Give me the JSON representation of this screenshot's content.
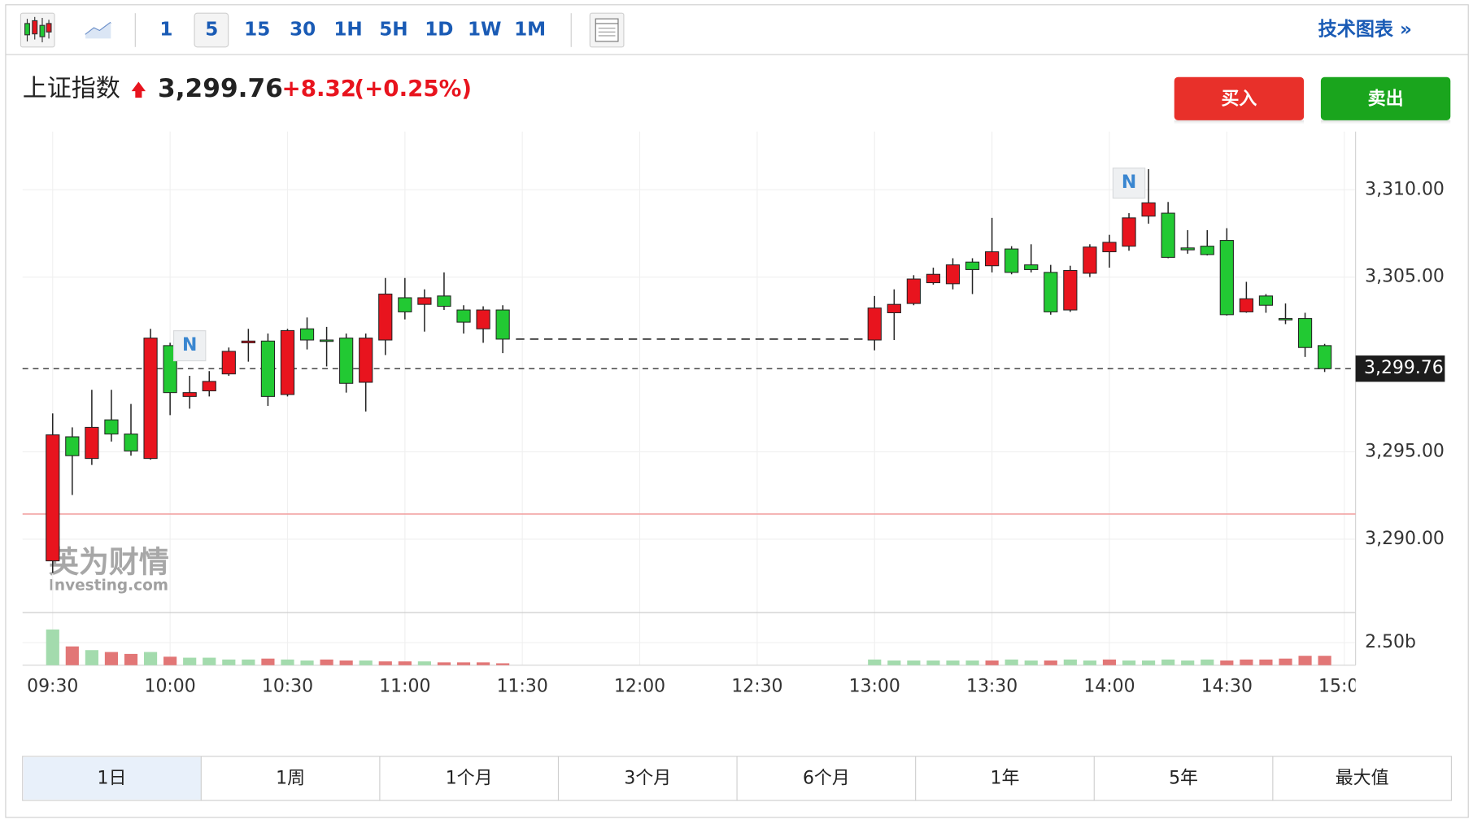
{
  "toolbar": {
    "intervals": [
      "1",
      "5",
      "15",
      "30",
      "1H",
      "5H",
      "1D",
      "1W",
      "1M"
    ],
    "tech_chart": "技术图表 »"
  },
  "header": {
    "name": "上证指数",
    "change": "+8.32",
    "change_pct": "(+0.25%)"
  },
  "buttons": {
    "buy": "买入",
    "sell": "卖出"
  },
  "ranges": [
    "1日",
    "1周",
    "1个月",
    "3个月",
    "6个月",
    "1年",
    "5年",
    "最大值"
  ],
  "watermark": {
    "cn": "英为财情",
    "en": "Investing.com"
  },
  "chart_data": {
    "type": "candlestick",
    "x": [
      570,
      575,
      580,
      585,
      590,
      595,
      600,
      605,
      610,
      615,
      620,
      625,
      630,
      635,
      640,
      645,
      650,
      655,
      660,
      665,
      670,
      675,
      680,
      685,
      780,
      785,
      790,
      795,
      800,
      805,
      810,
      815,
      820,
      825,
      830,
      835,
      840,
      845,
      850,
      855,
      860,
      865,
      870,
      875,
      880,
      885,
      890,
      895
    ],
    "open": [
      3288.76,
      3295.86,
      3294.62,
      3296.83,
      3296.02,
      3294.62,
      3301.08,
      3298.17,
      3298.49,
      3299.46,
      3301.24,
      3301.34,
      3298.28,
      3302.04,
      3301.4,
      3301.51,
      3298.98,
      3301.4,
      3303.82,
      3303.44,
      3303.92,
      3303.12,
      3302.04,
      3303.12,
      3301.4,
      3302.96,
      3303.49,
      3304.68,
      3304.62,
      3305.86,
      3305.65,
      3306.61,
      3305.7,
      3305.27,
      3303.12,
      3305.22,
      3306.45,
      3306.77,
      3308.49,
      3308.66,
      3306.67,
      3306.77,
      3307.1,
      3303.01,
      3303.92,
      3302.63,
      3302.63,
      3301.08
    ],
    "high": [
      3297.2,
      3296.4,
      3298.55,
      3298.55,
      3297.74,
      3302.04,
      3301.24,
      3299.35,
      3299.62,
      3300.97,
      3302.04,
      3301.77,
      3302.04,
      3302.69,
      3302.15,
      3301.77,
      3301.77,
      3304.95,
      3304.95,
      3304.3,
      3305.27,
      3303.39,
      3303.33,
      3303.39,
      3303.92,
      3304.3,
      3305.11,
      3305.54,
      3306.08,
      3306.08,
      3308.39,
      3306.77,
      3306.88,
      3305.7,
      3305.65,
      3306.88,
      3307.42,
      3308.66,
      3311.18,
      3309.3,
      3307.69,
      3307.69,
      3307.8,
      3304.73,
      3304.03,
      3303.49,
      3302.96,
      3301.18
    ],
    "low": [
      3288.06,
      3292.53,
      3294.25,
      3295.59,
      3294.78,
      3294.55,
      3297.1,
      3297.47,
      3298.17,
      3299.35,
      3300.16,
      3297.63,
      3298.17,
      3300.86,
      3299.89,
      3298.39,
      3297.31,
      3300.54,
      3302.58,
      3301.88,
      3303.12,
      3301.77,
      3301.24,
      3300.65,
      3300.81,
      3301.4,
      3303.39,
      3304.57,
      3304.3,
      3304.03,
      3305.27,
      3305.16,
      3305.27,
      3302.85,
      3303.01,
      3305.0,
      3305.54,
      3306.51,
      3308.06,
      3306.08,
      3306.34,
      3306.24,
      3302.8,
      3302.96,
      3302.96,
      3302.31,
      3300.43,
      3299.57
    ],
    "close": [
      3295.97,
      3294.78,
      3296.4,
      3296.02,
      3295.05,
      3301.51,
      3298.39,
      3298.39,
      3299.03,
      3300.75,
      3301.34,
      3298.17,
      3301.94,
      3301.4,
      3301.34,
      3298.92,
      3301.51,
      3304.03,
      3303.01,
      3303.82,
      3303.33,
      3302.42,
      3303.12,
      3301.45,
      3303.23,
      3303.44,
      3304.89,
      3305.16,
      3305.7,
      3305.43,
      3306.45,
      3305.27,
      3305.43,
      3303.01,
      3305.38,
      3306.72,
      3306.99,
      3308.39,
      3309.25,
      3306.13,
      3306.56,
      3306.29,
      3302.85,
      3303.76,
      3303.39,
      3302.58,
      3300.97,
      3299.76
    ],
    "up_color": "#e8141e",
    "down_color": "#22c933",
    "xlim": [
      562.3,
      902.9
    ],
    "xticks": [
      {
        "value": 570,
        "label": "09:30"
      },
      {
        "value": 600,
        "label": "10:00"
      },
      {
        "value": 630,
        "label": "10:30"
      },
      {
        "value": 660,
        "label": "11:00"
      },
      {
        "value": 690,
        "label": "11:30"
      },
      {
        "value": 720,
        "label": "12:00"
      },
      {
        "value": 750,
        "label": "12:30"
      },
      {
        "value": 780,
        "label": "13:00"
      },
      {
        "value": 810,
        "label": "13:30"
      },
      {
        "value": 840,
        "label": "14:00"
      },
      {
        "value": 870,
        "label": "14:30"
      },
      {
        "value": 900,
        "label": "15:00"
      }
    ],
    "ylim": [
      3285.8,
      3313.33
    ],
    "yticks": [
      {
        "value": 3290,
        "label": "3,290.00"
      },
      {
        "value": 3295,
        "label": "3,295.00"
      },
      {
        "value": 3305,
        "label": "3,305.00"
      },
      {
        "value": 3310,
        "label": "3,310.00"
      }
    ],
    "grid": true,
    "last_price": {
      "value": 3299.76,
      "label": "3,299.76"
    },
    "prev_close": 3291.44,
    "prev_close_color": "#f2a3a3",
    "news_markers": [
      {
        "x": 605,
        "label": "N"
      },
      {
        "x": 845,
        "label": "N"
      }
    ],
    "volume": {
      "values": [
        3960000000,
        2080000000,
        1670000000,
        1460000000,
        1250000000,
        1460000000,
        940000000,
        830000000,
        830000000,
        630000000,
        630000000,
        730000000,
        630000000,
        520000000,
        630000000,
        520000000,
        520000000,
        420000000,
        420000000,
        420000000,
        310000000,
        310000000,
        310000000,
        210000000,
        630000000,
        520000000,
        520000000,
        520000000,
        520000000,
        520000000,
        520000000,
        630000000,
        520000000,
        520000000,
        630000000,
        520000000,
        630000000,
        520000000,
        520000000,
        630000000,
        520000000,
        630000000,
        520000000,
        630000000,
        630000000,
        730000000,
        1040000000,
        1040000000
      ],
      "colors": [
        "#a3dbad",
        "#e27676",
        "#a3dbad",
        "#e27676",
        "#e27676",
        "#a3dbad",
        "#e27676",
        "#a3dbad",
        "#a3dbad",
        "#a3dbad",
        "#a3dbad",
        "#e27676",
        "#a3dbad",
        "#a3dbad",
        "#e27676",
        "#e27676",
        "#a3dbad",
        "#e27676",
        "#e27676",
        "#a3dbad",
        "#e27676",
        "#e27676",
        "#e27676",
        "#e27676",
        "#a3dbad",
        "#a3dbad",
        "#a3dbad",
        "#a3dbad",
        "#a3dbad",
        "#a3dbad",
        "#e27676",
        "#a3dbad",
        "#a3dbad",
        "#e27676",
        "#a3dbad",
        "#a3dbad",
        "#e27676",
        "#a3dbad",
        "#a3dbad",
        "#a3dbad",
        "#a3dbad",
        "#a3dbad",
        "#e27676",
        "#e27676",
        "#e27676",
        "#e27676",
        "#e27676",
        "#e27676"
      ],
      "ylim": [
        0,
        5830000000
      ],
      "yticks": [
        {
          "value": 2500000000,
          "label": "2.50b"
        }
      ]
    }
  }
}
